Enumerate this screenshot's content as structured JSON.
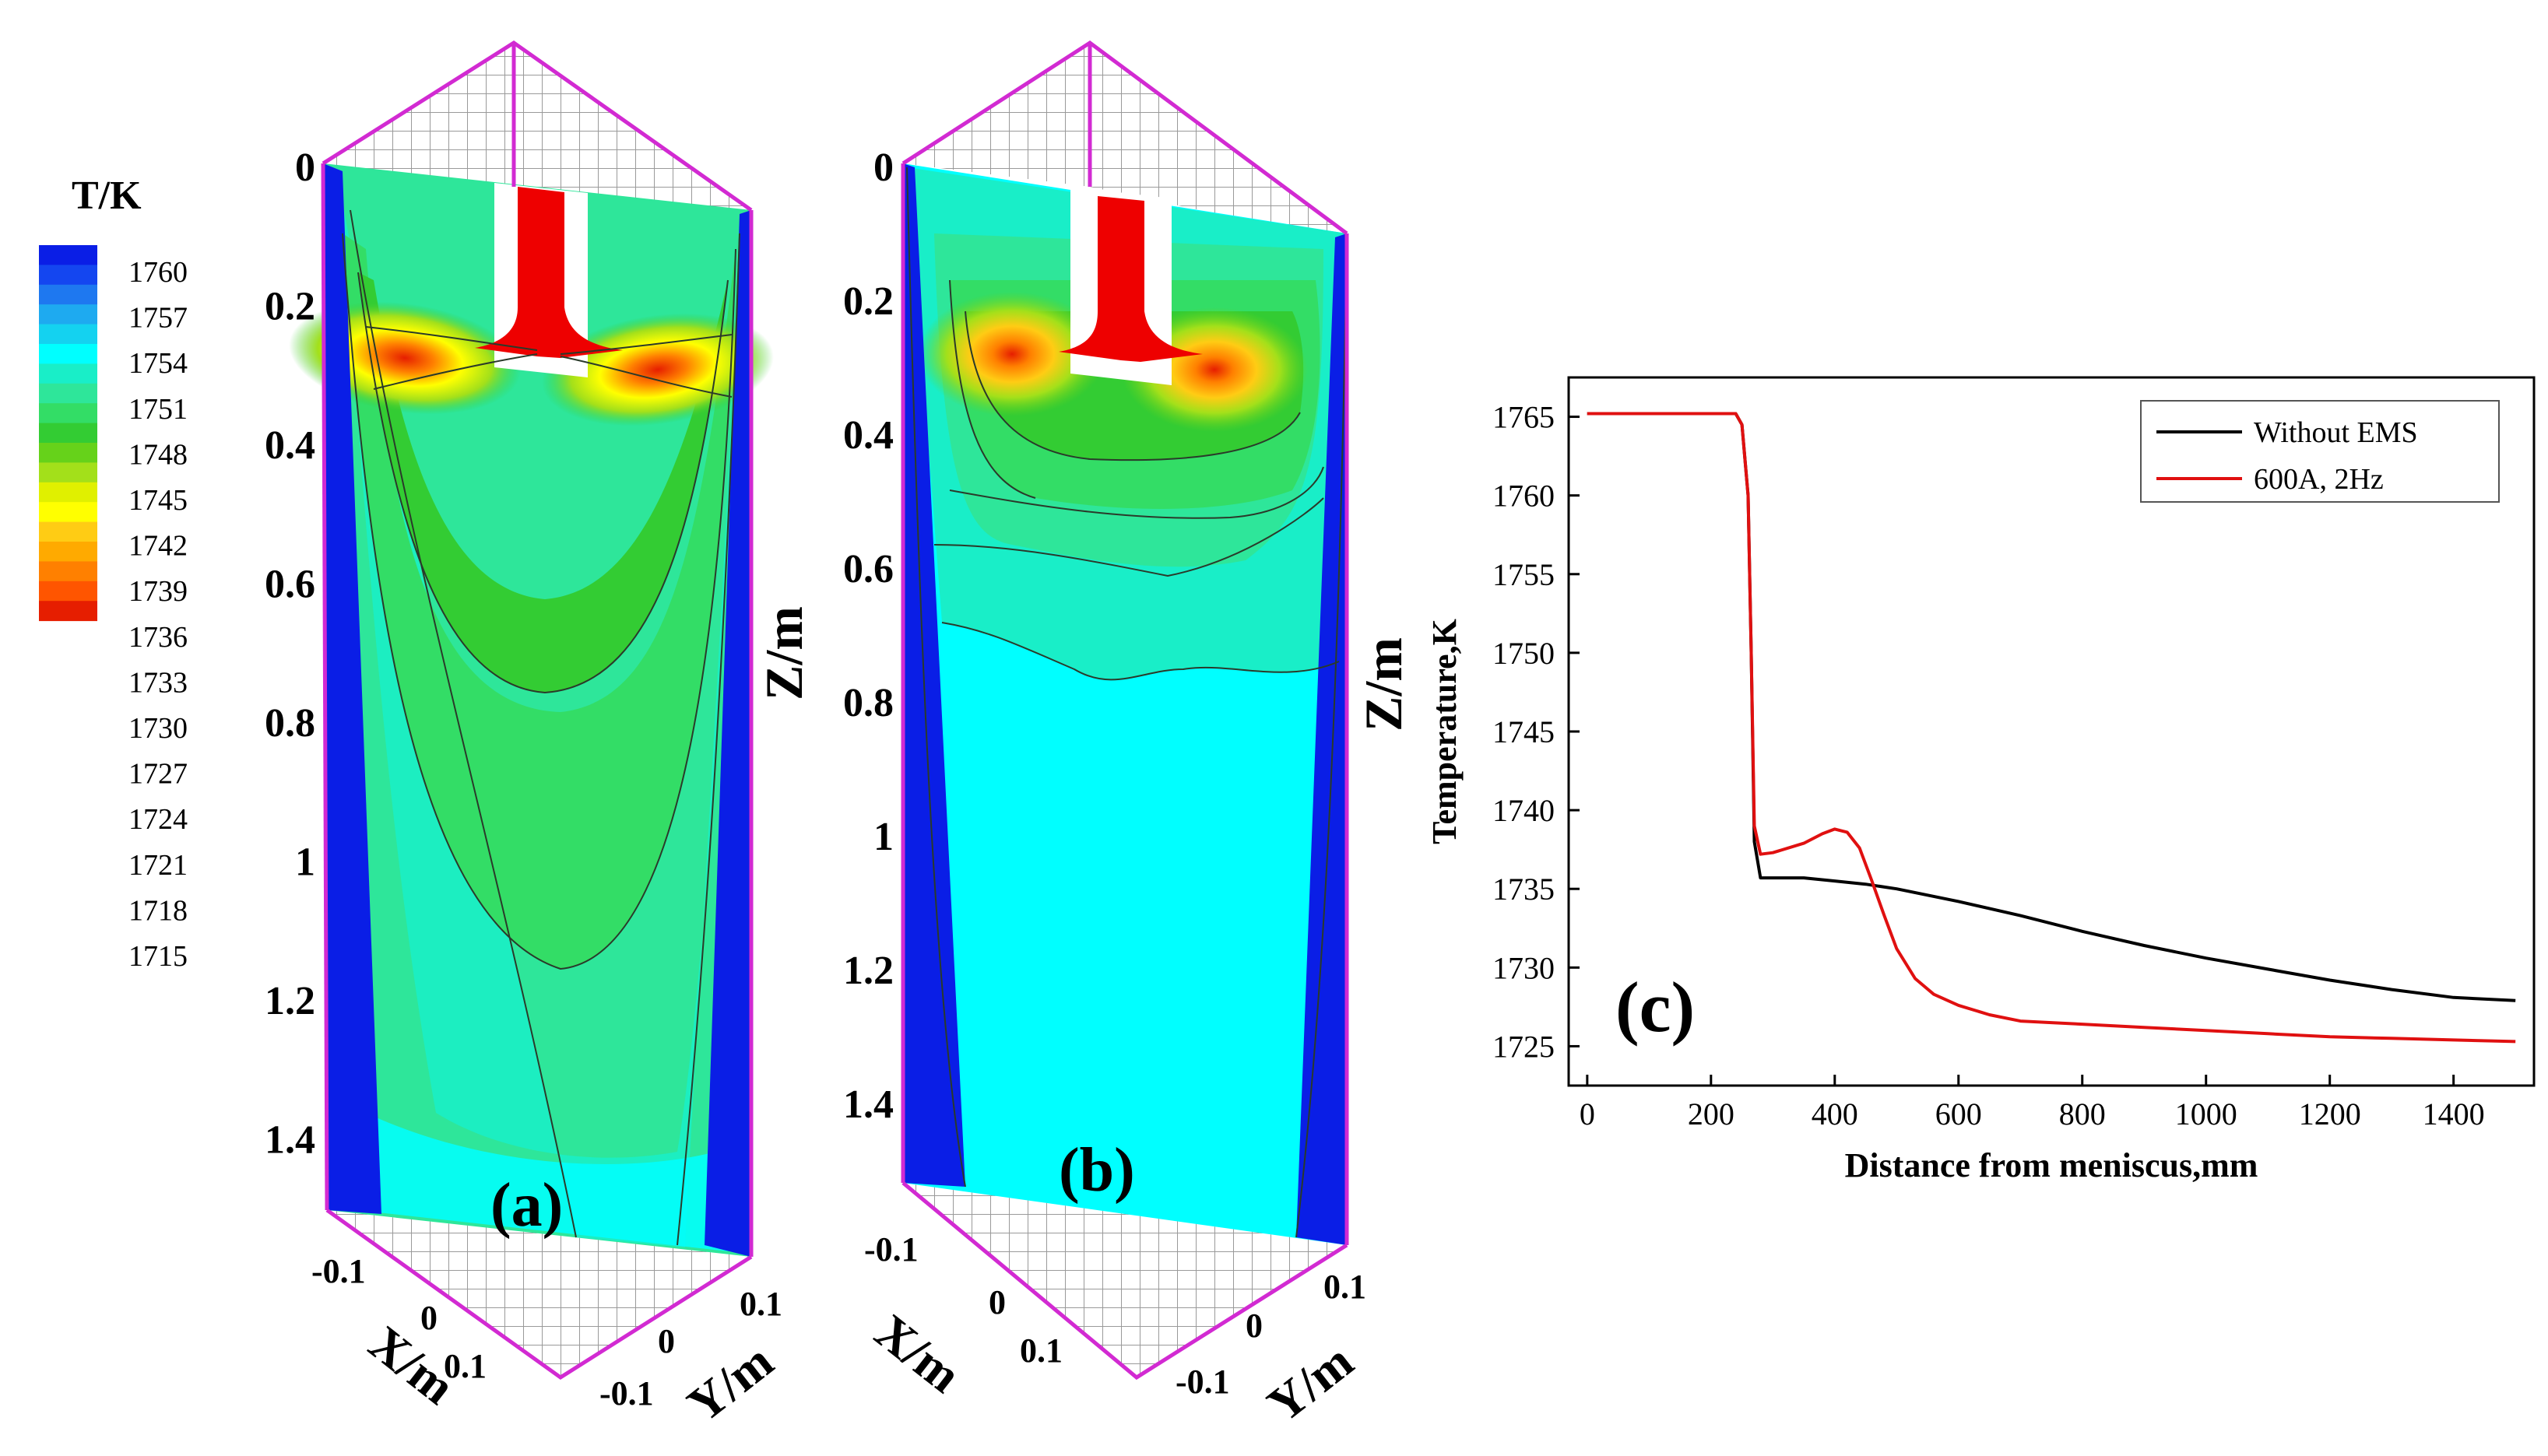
{
  "colors": {
    "scale": [
      "#0a1ee6",
      "#1446f0",
      "#1e78f0",
      "#1eaaf0",
      "#14d2f0",
      "#00ffff",
      "#19eec8",
      "#2ee69a",
      "#33dd66",
      "#33cc33",
      "#66d21a",
      "#a3e01a",
      "#e0f000",
      "#ffff00",
      "#ffcc14",
      "#ffaa00",
      "#ff8000",
      "#ff5500",
      "#e61e00"
    ],
    "frame": "#d22ad2",
    "grid": "#9a9a9a",
    "nozzle": "#ee0000",
    "contour_line": "#2a3a2a",
    "series_black": "#000000",
    "series_red": "#e01010"
  },
  "legend": {
    "title": "T/K",
    "labels": [
      "1760",
      "1757",
      "1754",
      "1751",
      "1748",
      "1745",
      "1742",
      "1739",
      "1736",
      "1733",
      "1730",
      "1727",
      "1724",
      "1721",
      "1718",
      "1715"
    ]
  },
  "panel_a": {
    "label": "(a)",
    "z_ticks": [
      "0",
      "0.2",
      "0.4",
      "0.6",
      "0.8",
      "1",
      "1.2",
      "1.4"
    ],
    "x_title": "X/m",
    "x_ticks": [
      "-0.1",
      "0",
      "0.1"
    ],
    "y_title": "Y/m",
    "y_ticks": [
      "0.1",
      "0",
      "-0.1"
    ]
  },
  "panel_b": {
    "label": "(b)",
    "z_title": "Z/m",
    "z_ticks": [
      "0",
      "0.2",
      "0.4",
      "0.6",
      "0.8",
      "1",
      "1.2",
      "1.4"
    ],
    "x_title": "X/m",
    "x_ticks": [
      "-0.1",
      "0",
      "0.1"
    ],
    "y_title": "Y/m",
    "y_ticks": [
      "0.1",
      "0",
      "-0.1"
    ],
    "z_title_right": "Z/m"
  },
  "chart_data": {
    "type": "line",
    "label": "(c)",
    "xlabel": "Distance from meniscus,mm",
    "ylabel": "Temperature,K",
    "xlim": [
      -30,
      1530
    ],
    "ylim": [
      1722.5,
      1767.5
    ],
    "x_ticks": [
      0,
      200,
      400,
      600,
      800,
      1000,
      1200,
      1400
    ],
    "y_ticks": [
      1725,
      1730,
      1735,
      1740,
      1745,
      1750,
      1755,
      1760,
      1765
    ],
    "legend_position": "top-right",
    "series": [
      {
        "name": "Without EMS",
        "color": "#000000",
        "x": [
          0,
          230,
          240,
          250,
          260,
          265,
          270,
          280,
          300,
          350,
          400,
          450,
          500,
          600,
          700,
          800,
          900,
          1000,
          1100,
          1200,
          1300,
          1400,
          1500
        ],
        "y": [
          1765.2,
          1765.2,
          1765.2,
          1764.5,
          1760,
          1750,
          1738,
          1735.7,
          1735.7,
          1735.7,
          1735.5,
          1735.3,
          1735.0,
          1734.2,
          1733.3,
          1732.3,
          1731.4,
          1730.6,
          1729.9,
          1729.2,
          1728.6,
          1728.1,
          1727.9
        ]
      },
      {
        "name": "600A, 2Hz",
        "color": "#e01010",
        "x": [
          0,
          230,
          240,
          250,
          260,
          265,
          270,
          280,
          300,
          350,
          380,
          400,
          420,
          440,
          460,
          480,
          500,
          530,
          560,
          600,
          650,
          700,
          750,
          800,
          900,
          1000,
          1100,
          1200,
          1300,
          1400,
          1500
        ],
        "y": [
          1765.2,
          1765.2,
          1765.2,
          1764.5,
          1760,
          1750,
          1739,
          1737.2,
          1737.3,
          1737.9,
          1738.5,
          1738.8,
          1738.6,
          1737.6,
          1735.5,
          1733.3,
          1731.2,
          1729.3,
          1728.3,
          1727.6,
          1727.0,
          1726.6,
          1726.5,
          1726.4,
          1726.2,
          1726.0,
          1725.8,
          1725.6,
          1725.5,
          1725.4,
          1725.3
        ]
      }
    ]
  }
}
